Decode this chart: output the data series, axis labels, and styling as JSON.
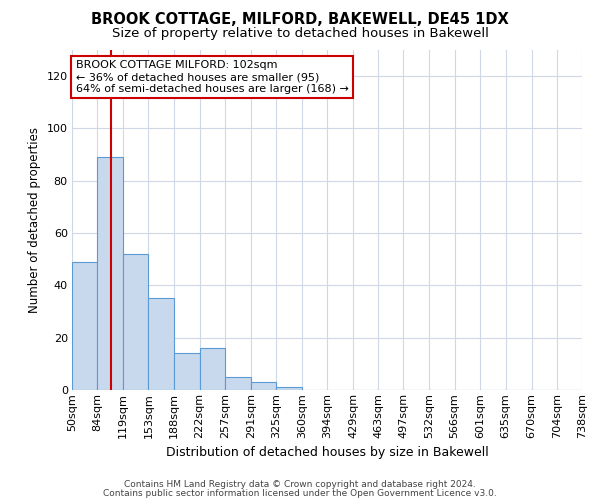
{
  "title": "BROOK COTTAGE, MILFORD, BAKEWELL, DE45 1DX",
  "subtitle": "Size of property relative to detached houses in Bakewell",
  "xlabel": "Distribution of detached houses by size in Bakewell",
  "ylabel": "Number of detached properties",
  "bin_edges": [
    50,
    84,
    119,
    153,
    188,
    222,
    257,
    291,
    325,
    360,
    394,
    429,
    463,
    497,
    532,
    566,
    601,
    635,
    670,
    704,
    738
  ],
  "bar_heights": [
    49,
    89,
    52,
    35,
    14,
    16,
    5,
    3,
    1,
    0,
    0,
    0,
    0,
    0,
    0,
    0,
    0,
    0,
    0,
    0
  ],
  "bar_color": "#c8d9ed",
  "bar_edge_color": "#5b9bd5",
  "property_size": 102,
  "vline_color": "#cc0000",
  "annotation_line1": "BROOK COTTAGE MILFORD: 102sqm",
  "annotation_line2": "← 36% of detached houses are smaller (95)",
  "annotation_line3": "64% of semi-detached houses are larger (168) →",
  "annotation_box_color": "#ffffff",
  "annotation_border_color": "#cc0000",
  "ylim": [
    0,
    130
  ],
  "yticks": [
    0,
    20,
    40,
    60,
    80,
    100,
    120
  ],
  "background_color": "#ffffff",
  "plot_bg_color": "#ffffff",
  "grid_color": "#d0d8e8",
  "footer_line1": "Contains HM Land Registry data © Crown copyright and database right 2024.",
  "footer_line2": "Contains public sector information licensed under the Open Government Licence v3.0.",
  "title_fontsize": 10.5,
  "subtitle_fontsize": 9.5,
  "annotation_fontsize": 8,
  "ylabel_fontsize": 8.5,
  "xlabel_fontsize": 9,
  "tick_fontsize": 8
}
